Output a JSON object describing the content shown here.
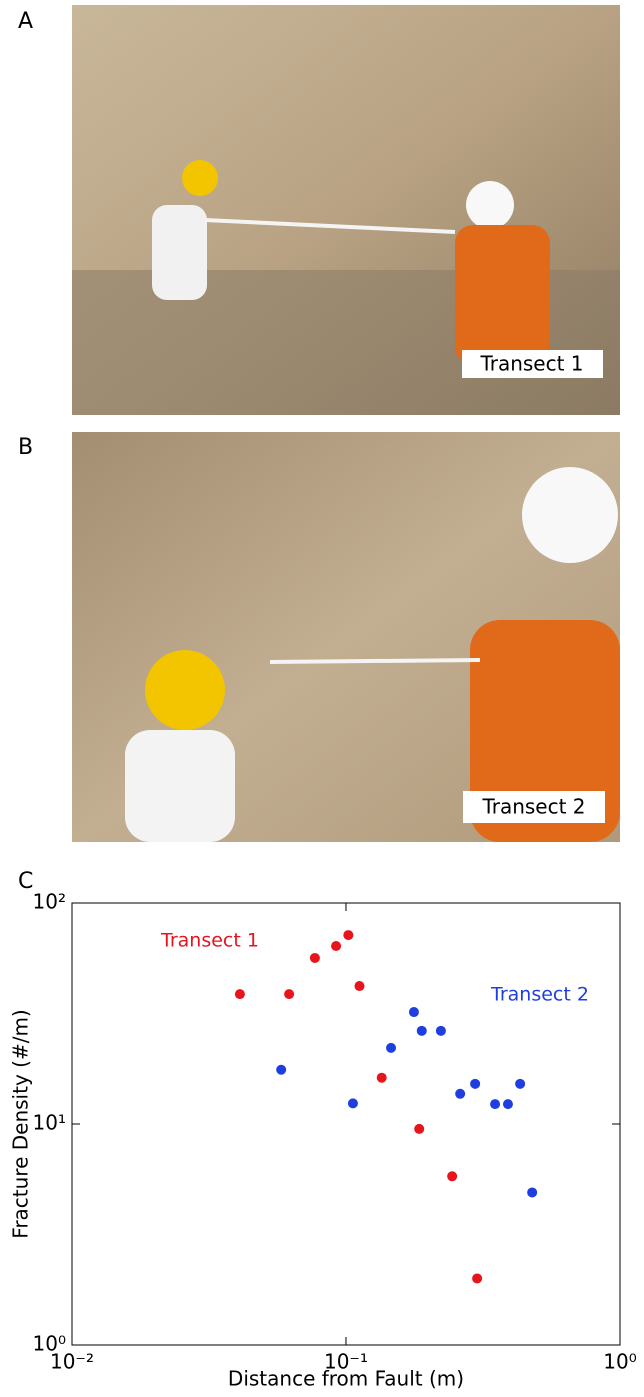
{
  "panels": [
    {
      "label": "A",
      "caption": "Transect 1"
    },
    {
      "label": "B",
      "caption": "Transect 2"
    }
  ],
  "chart_data": {
    "type": "scatter",
    "panel_label": "C",
    "xlabel": "Distance from Fault (m)",
    "ylabel": "Fracture Density (#/m)",
    "xscale": "log",
    "yscale": "log",
    "xlim": [
      0.01,
      1
    ],
    "ylim": [
      1,
      100
    ],
    "xticks": [
      {
        "value": 0.01,
        "label": "10⁻²"
      },
      {
        "value": 0.1,
        "label": "10⁻¹"
      },
      {
        "value": 1,
        "label": "10⁰"
      }
    ],
    "yticks": [
      {
        "value": 1,
        "label": "10⁰"
      },
      {
        "value": 10,
        "label": "10¹"
      },
      {
        "value": 100,
        "label": "10²"
      }
    ],
    "grid": false,
    "series": [
      {
        "name": "Transect 1",
        "color": "#e8141b",
        "x": [
          0.041,
          0.062,
          0.077,
          0.092,
          0.102,
          0.112,
          0.135,
          0.185,
          0.244,
          0.301
        ],
        "values": [
          38.7,
          38.7,
          56.4,
          63.9,
          71.6,
          42.1,
          16.2,
          9.5,
          5.8,
          2.0
        ]
      },
      {
        "name": "Transect 2",
        "color": "#1f3ee0",
        "x": [
          0.058,
          0.106,
          0.146,
          0.177,
          0.189,
          0.222,
          0.261,
          0.296,
          0.35,
          0.39,
          0.432,
          0.478
        ],
        "values": [
          17.6,
          12.4,
          22.1,
          32.1,
          26.4,
          26.4,
          13.7,
          15.2,
          12.3,
          12.3,
          15.2,
          4.9
        ]
      }
    ]
  }
}
